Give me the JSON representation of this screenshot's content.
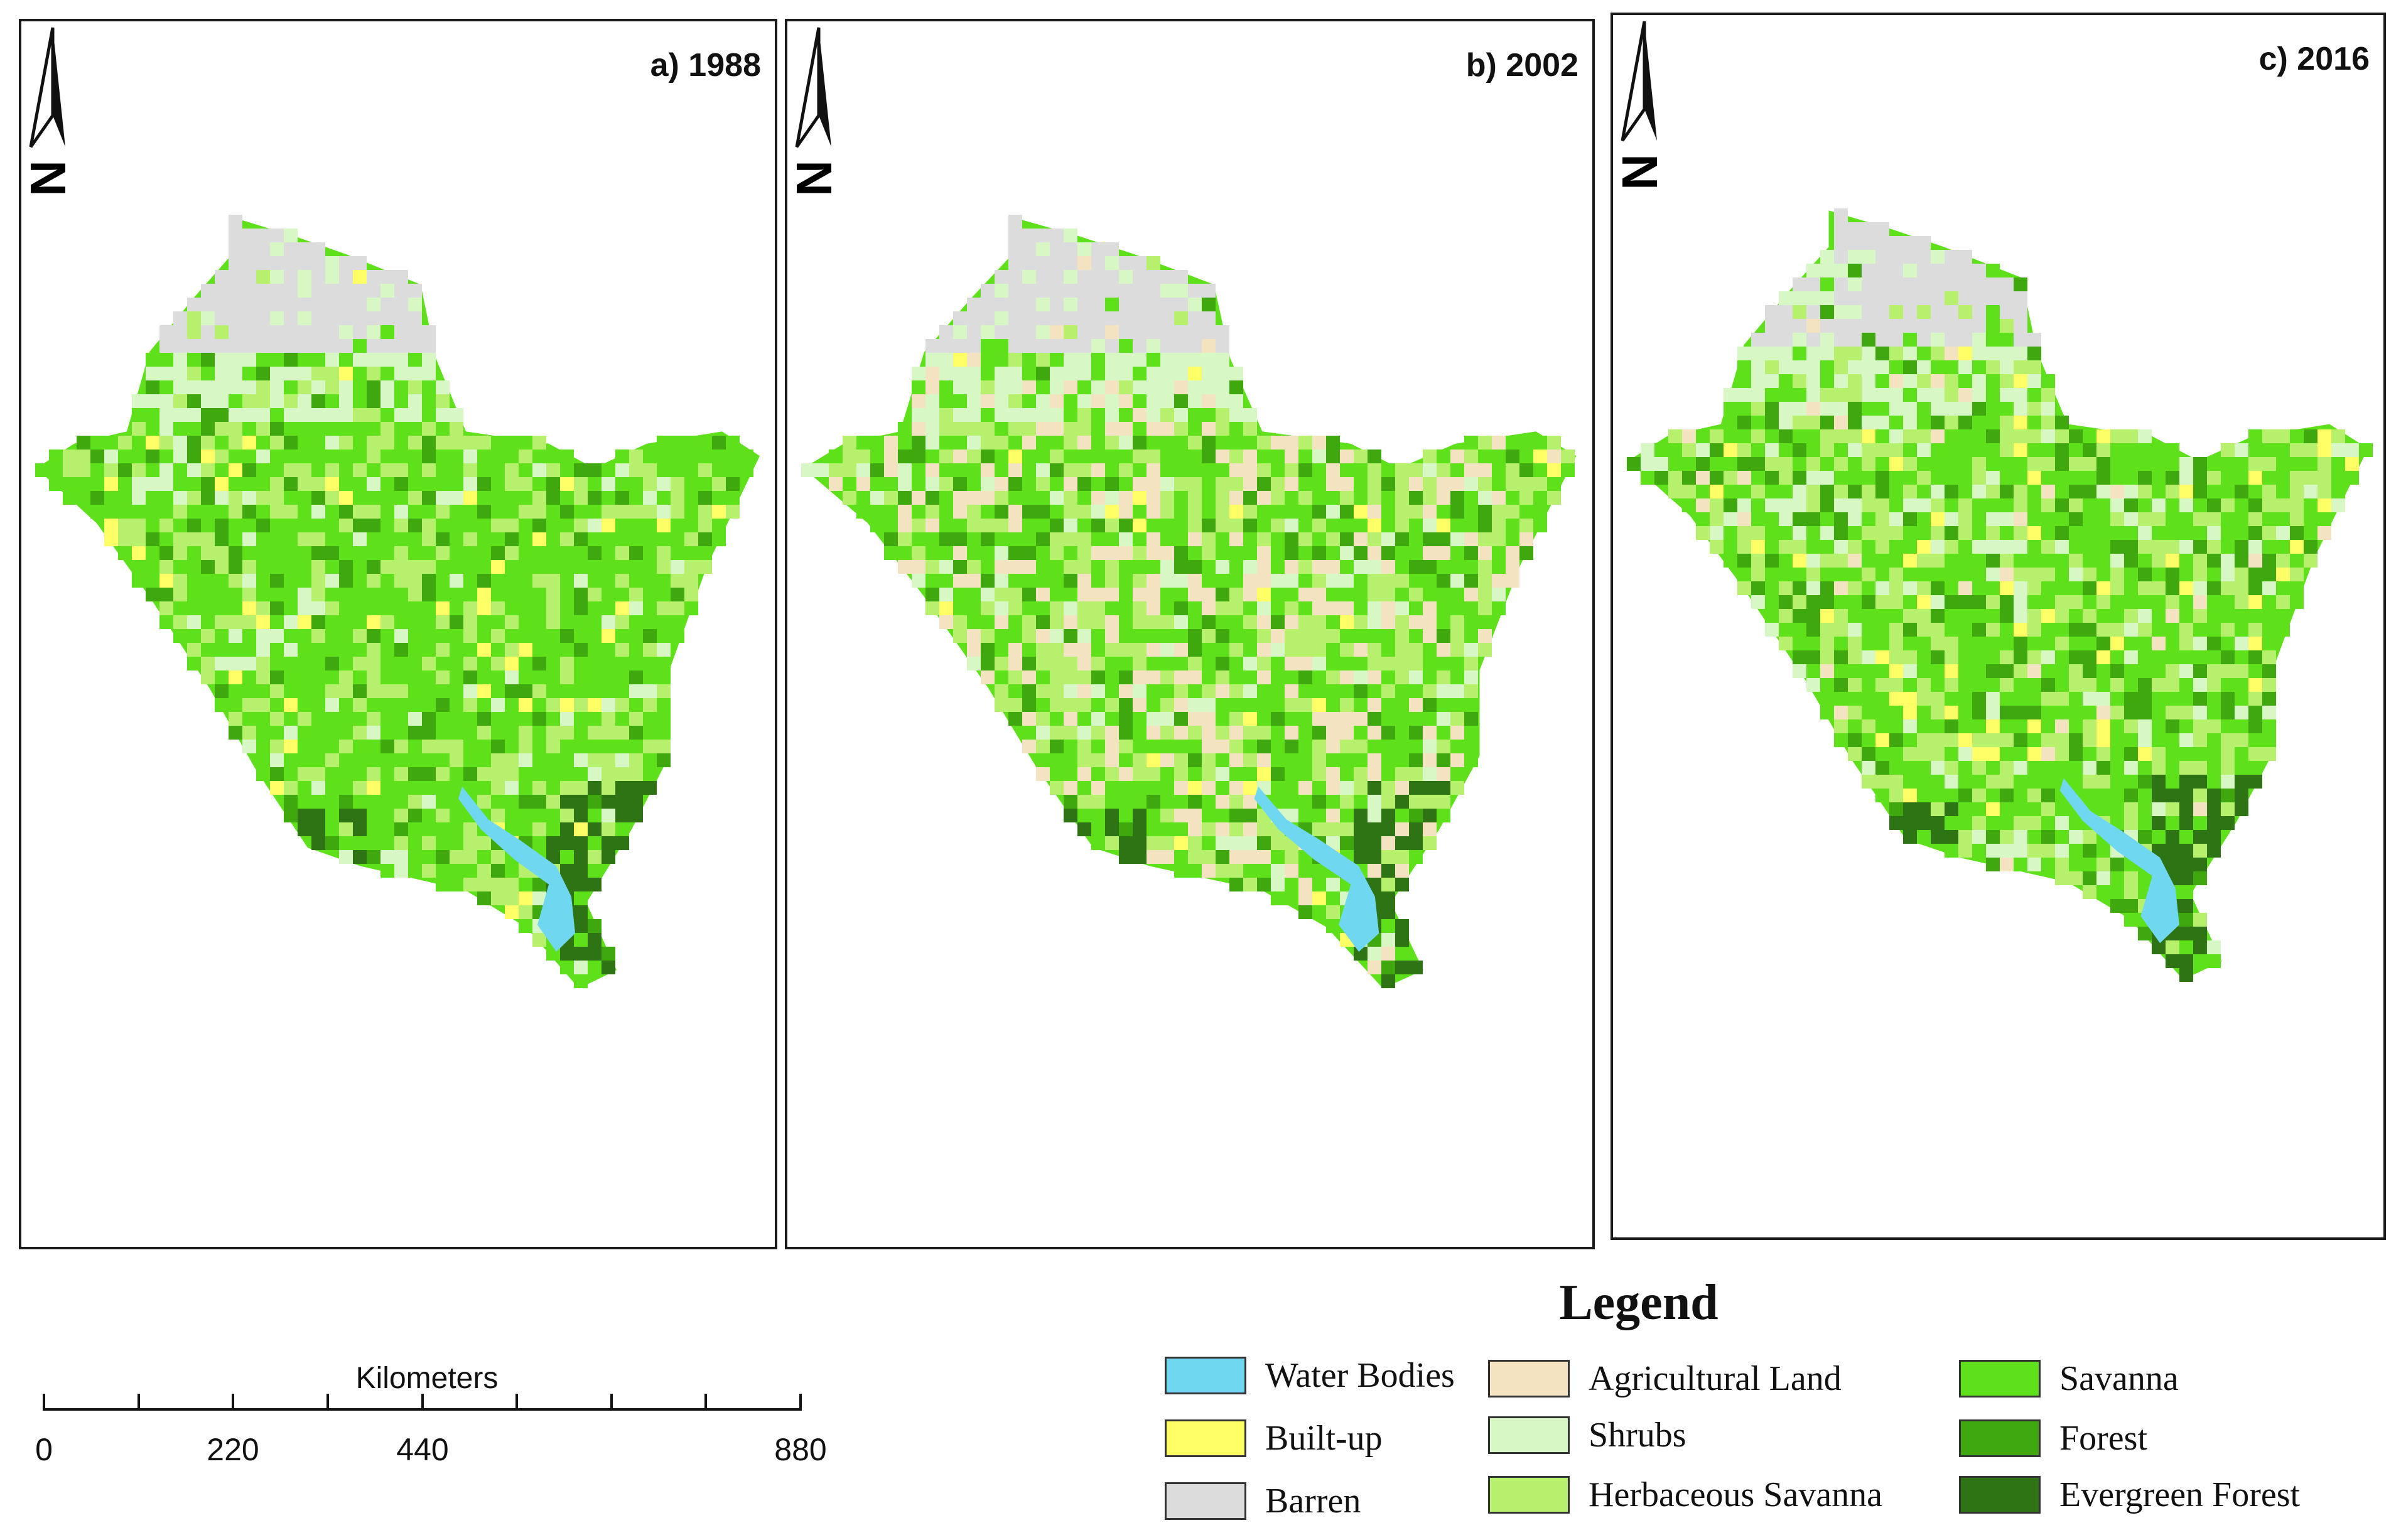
{
  "panels": [
    {
      "title": "a) 1988"
    },
    {
      "title": "b) 2002"
    },
    {
      "title": "c) 2016"
    }
  ],
  "north_arrow": {
    "label": "N"
  },
  "scalebar": {
    "title": "Kilometers",
    "ticks": [
      "0",
      "220",
      "440",
      "880"
    ]
  },
  "legend": {
    "title": "Legend",
    "items": [
      {
        "label": "Water Bodies",
        "color": "#6fd8f0"
      },
      {
        "label": "Built-up",
        "color": "#ffff66"
      },
      {
        "label": "Barren",
        "color": "#dcdcdc"
      },
      {
        "label": "Agricultural Land",
        "color": "#f3e3c0"
      },
      {
        "label": "Shrubs",
        "color": "#d7f7c4"
      },
      {
        "label": "Herbaceous Savanna",
        "color": "#b6f06c"
      },
      {
        "label": "Savanna",
        "color": "#5ee01a"
      },
      {
        "label": "Forest",
        "color": "#3fa80e"
      },
      {
        "label": "Evergreen Forest",
        "color": "#2f7414"
      }
    ]
  }
}
